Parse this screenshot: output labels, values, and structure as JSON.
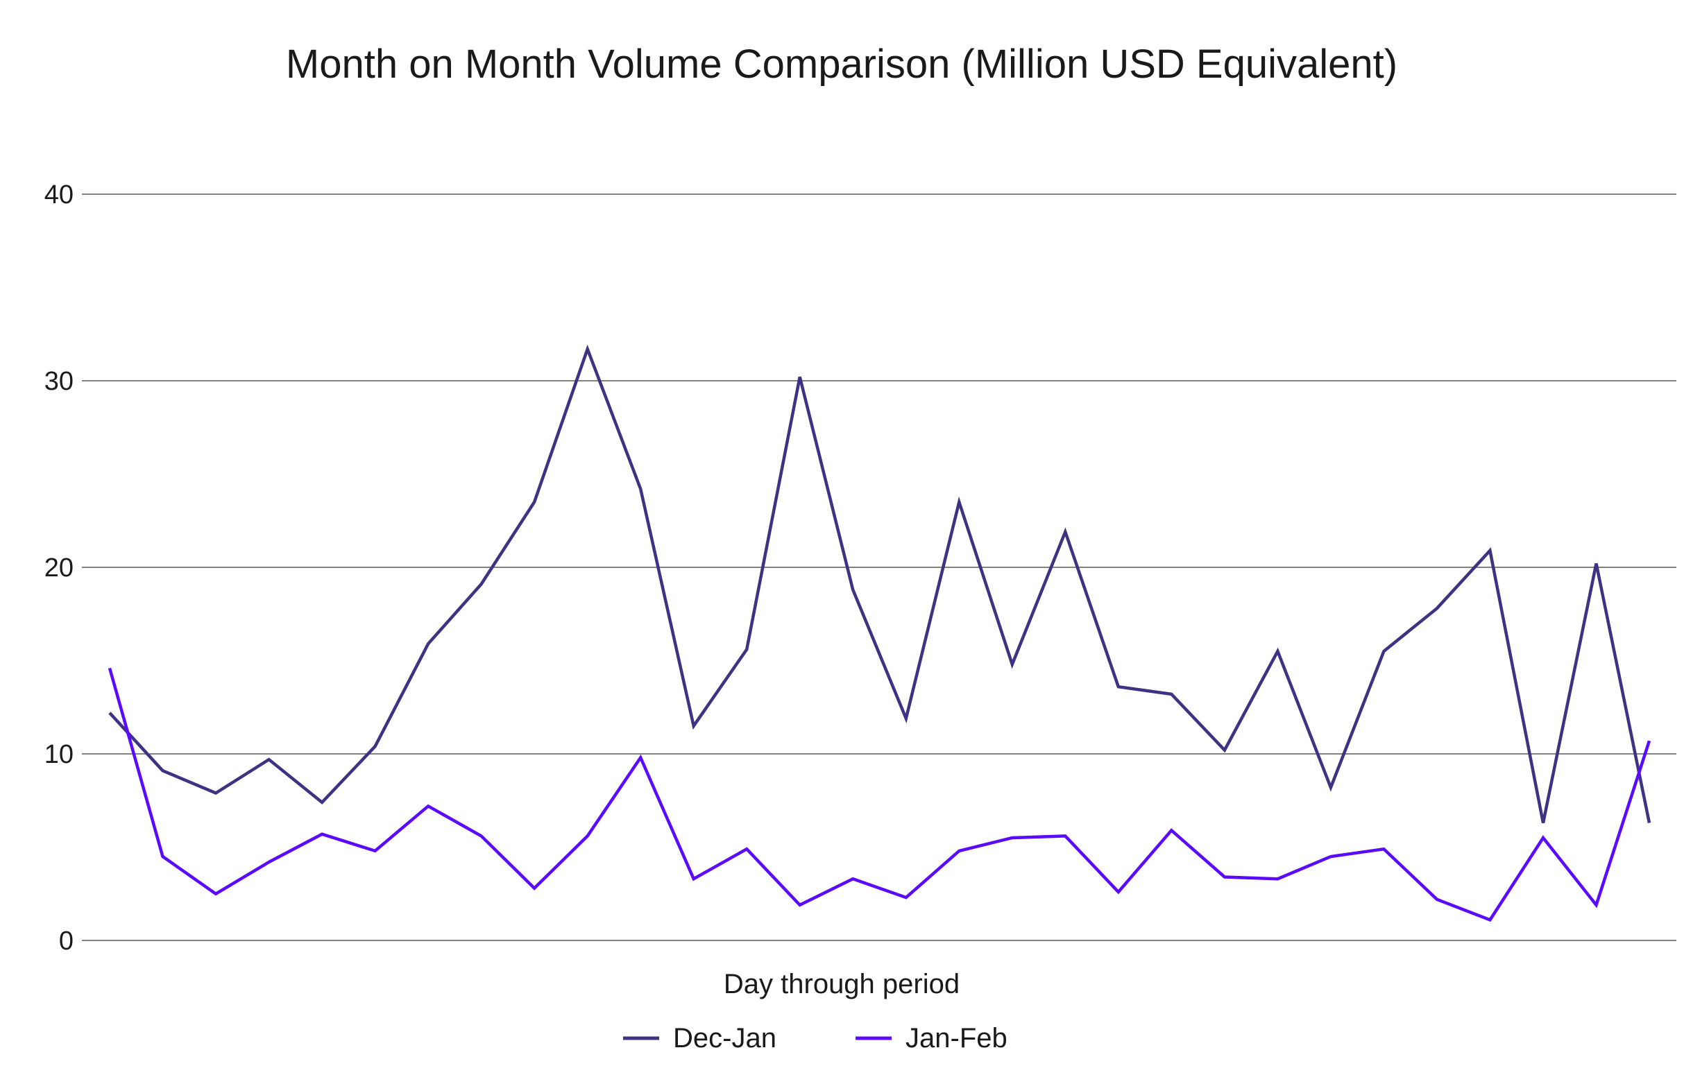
{
  "chart_data": {
    "type": "line",
    "title": "Month on Month Volume Comparison (Million USD Equivalent)",
    "xlabel": "Day through period",
    "ylabel": "",
    "ylim": [
      0,
      40
    ],
    "yticks": [
      0,
      10,
      20,
      30,
      40
    ],
    "grid": true,
    "legend_position": "bottom",
    "x": [
      1,
      2,
      3,
      4,
      5,
      6,
      7,
      8,
      9,
      10,
      11,
      12,
      13,
      14,
      15,
      16,
      17,
      18,
      19,
      20,
      21,
      22,
      23,
      24,
      25,
      26,
      27,
      28,
      29,
      30
    ],
    "series": [
      {
        "name": "Dec-Jan",
        "color": "#3e3282",
        "values": [
          12.2,
          9.1,
          7.9,
          9.7,
          7.4,
          10.4,
          15.9,
          19.1,
          23.5,
          31.7,
          24.2,
          11.5,
          15.6,
          30.2,
          18.8,
          11.9,
          23.5,
          14.8,
          21.9,
          13.6,
          13.2,
          10.2,
          15.5,
          8.2,
          15.5,
          17.8,
          20.9,
          6.3,
          20.2,
          6.3
        ]
      },
      {
        "name": "Jan-Feb",
        "color": "#5a0bff",
        "values": [
          14.6,
          4.5,
          2.5,
          4.2,
          5.7,
          4.8,
          7.2,
          5.6,
          2.8,
          5.6,
          9.8,
          3.3,
          4.9,
          1.9,
          3.3,
          2.3,
          4.8,
          5.5,
          5.6,
          2.6,
          5.9,
          3.4,
          3.3,
          4.5,
          4.9,
          2.2,
          1.1,
          5.5,
          1.9,
          10.7
        ]
      }
    ]
  }
}
